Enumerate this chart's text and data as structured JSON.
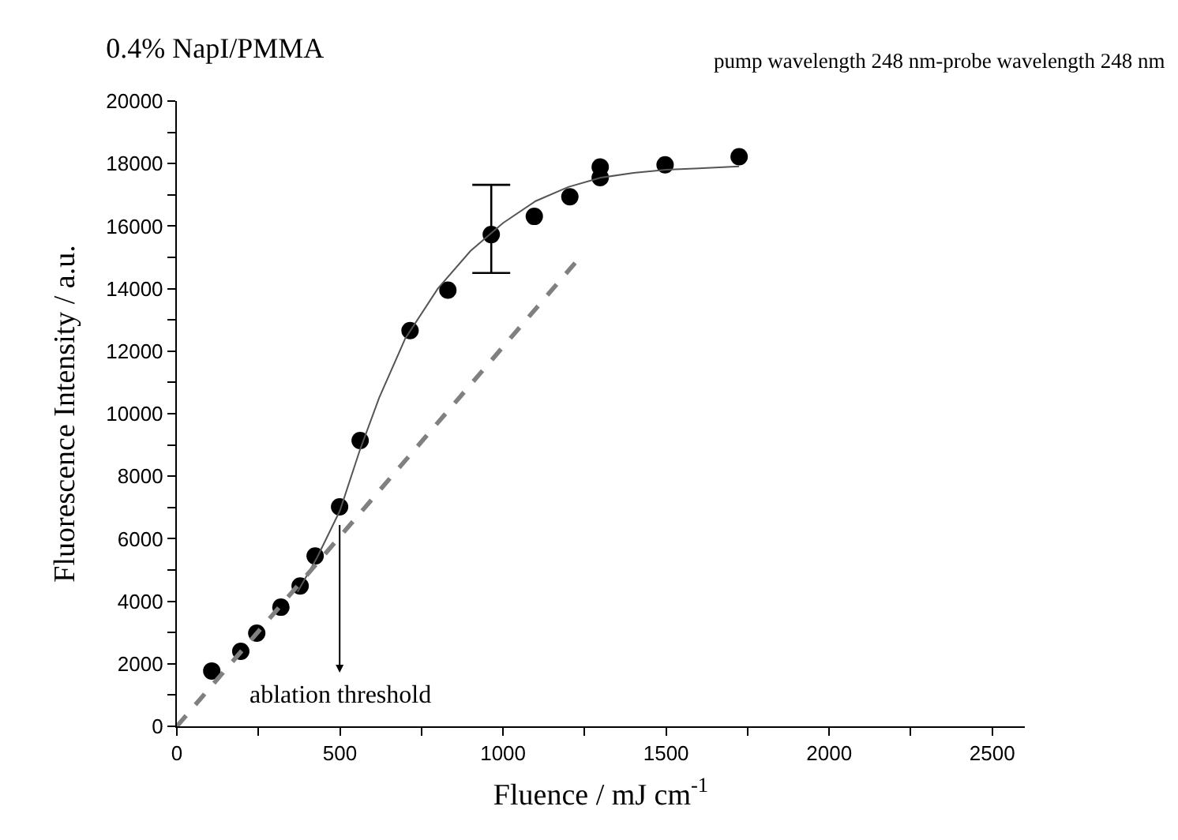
{
  "chart_data": {
    "type": "scatter",
    "title": "0.4% NapI/PMMA",
    "subtitle": "pump wavelength 248 nm-probe wavelength 248 nm",
    "xlabel": "Fluence / mJ cm$^{-1}$",
    "ylabel": "Fluorescence Intensity / a.u.",
    "xlim": [
      0,
      2600
    ],
    "ylim": [
      0,
      20000
    ],
    "xticks": [
      0,
      {
        "value": 250,
        "label": null
      },
      500,
      {
        "value": 750,
        "label": null
      },
      1000,
      {
        "value": 1250,
        "label": null
      },
      1500,
      {
        "value": 1750,
        "label": null
      },
      2000,
      {
        "value": 2250,
        "label": null
      },
      2500
    ],
    "yticks": [
      0,
      {
        "value": 1000,
        "label": null
      },
      2000,
      {
        "value": 3000,
        "label": null
      },
      4000,
      {
        "value": 5000,
        "label": null
      },
      6000,
      {
        "value": 7000,
        "label": null
      },
      8000,
      {
        "value": 9000,
        "label": null
      },
      10000,
      {
        "value": 11000,
        "label": null
      },
      12000,
      {
        "value": 13000,
        "label": null
      },
      14000,
      {
        "value": 15000,
        "label": null
      },
      16000,
      {
        "value": 17000,
        "label": null
      },
      18000,
      {
        "value": 19000,
        "label": null
      },
      20000
    ],
    "grid": false,
    "annotations": [
      "ablation threshold"
    ],
    "series": [
      {
        "marker": "circle",
        "color": "#000000",
        "x": [
          107,
          196,
          245,
          319,
          378,
          424,
          499,
          562,
          715,
          831,
          964,
          1096,
          1205,
          1298,
          1298,
          1497,
          1724
        ],
        "values": [
          1770,
          2400,
          2980,
          3810,
          4490,
          5450,
          7020,
          9140,
          12660,
          13950,
          15730,
          16310,
          16940,
          17550,
          17890,
          17960,
          18220
        ],
        "errors": [
          null,
          null,
          null,
          null,
          null,
          null,
          null,
          null,
          null,
          null,
          [
            14500,
            17320
          ],
          null,
          null,
          null,
          null,
          null,
          null
        ]
      },
      {
        "type": "line",
        "line_style": "solid",
        "color": "#555555",
        "x": [
          370,
          430,
          500,
          560,
          620,
          700,
          800,
          900,
          1000,
          1100,
          1200,
          1300,
          1400,
          1500,
          1600,
          1724
        ],
        "values": [
          4300,
          5400,
          6900,
          8800,
          10500,
          12400,
          14000,
          15200,
          16100,
          16800,
          17250,
          17550,
          17700,
          17800,
          17850,
          17910
        ]
      },
      {
        "type": "line",
        "line_style": "dashed",
        "color": "#808080",
        "x": [
          0,
          1230
        ],
        "values": [
          0,
          14930
        ]
      }
    ]
  }
}
